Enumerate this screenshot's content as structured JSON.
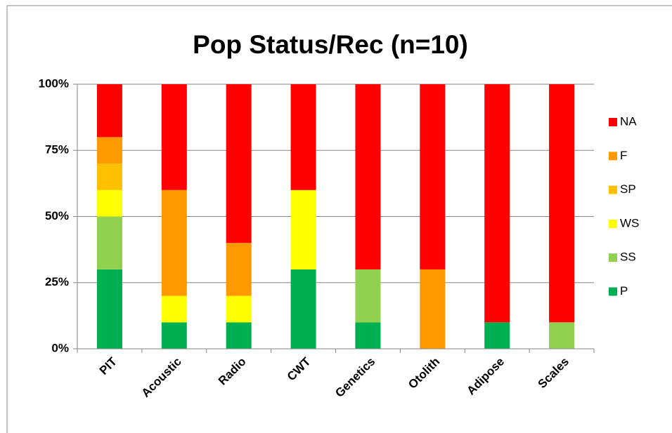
{
  "chart_data": {
    "type": "stacked_bar",
    "title": "Pop Status/Rec (n=10)",
    "categories": [
      "PIT",
      "Acoustic",
      "Radio",
      "CWT",
      "Genetics",
      "Otolith",
      "Adipose",
      "Scales"
    ],
    "series": [
      {
        "name": "P",
        "color": "#00b050",
        "values": [
          30,
          10,
          10,
          30,
          10,
          0,
          10,
          0
        ]
      },
      {
        "name": "SS",
        "color": "#92d050",
        "values": [
          20,
          0,
          0,
          0,
          20,
          0,
          0,
          10
        ]
      },
      {
        "name": "WS",
        "color": "#ffff00",
        "values": [
          10,
          10,
          10,
          30,
          0,
          0,
          0,
          0
        ]
      },
      {
        "name": "SP",
        "color": "#ffc000",
        "values": [
          10,
          0,
          0,
          0,
          0,
          0,
          0,
          0
        ]
      },
      {
        "name": "F",
        "color": "#ff9900",
        "values": [
          10,
          40,
          20,
          0,
          0,
          30,
          0,
          0
        ]
      },
      {
        "name": "NA",
        "color": "#ff0000",
        "values": [
          20,
          40,
          60,
          40,
          70,
          70,
          90,
          90
        ]
      }
    ],
    "ylim": [
      0,
      100
    ],
    "yticks": [
      {
        "value": 0,
        "label": "0%"
      },
      {
        "value": 25,
        "label": "25%"
      },
      {
        "value": 50,
        "label": "50%"
      },
      {
        "value": 75,
        "label": "75%"
      },
      {
        "value": 100,
        "label": "100%"
      }
    ],
    "grid": true,
    "legend": "right"
  }
}
